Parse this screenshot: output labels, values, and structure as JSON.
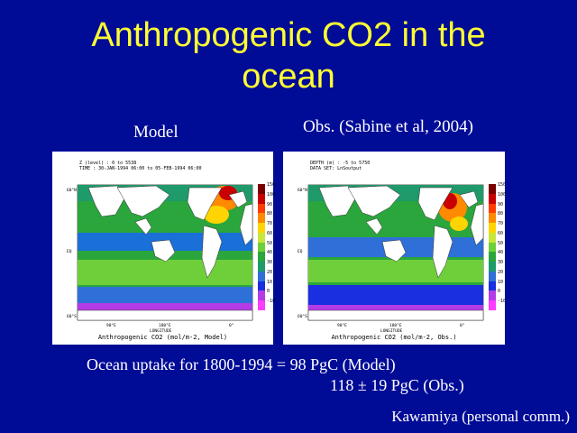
{
  "slide": {
    "title_line1": "Anthropogenic CO2 in the",
    "title_line2": "ocean",
    "model_label": "Model",
    "obs_label": "Obs. (Sabine et al, 2004)",
    "uptake_line1": "Ocean uptake for 1800-1994 =  98 PgC (Model)",
    "uptake_line2": "118 ± 19 PgC (Obs.)",
    "credit": "Kawamiya (personal comm.)"
  },
  "maps": {
    "model": {
      "header1": "Z (level) : 0 to 5538",
      "header2": "TIME : 30-JAN-1994 06:00 to 05-FEB-1994 06:00",
      "footer": "Anthropogenic CO2 (mol/m-2, Model)"
    },
    "obs": {
      "header1": "DEPTH (m) : -5 to 5750",
      "header2": "DATA SET: LnSoutput",
      "footer": "Anthropogenic CO2 (mol/m-2, Obs.)"
    },
    "colorbar_ticks": [
      "150",
      "100",
      "90",
      "80",
      "70",
      "60",
      "50",
      "40",
      "30",
      "20",
      "10",
      "0",
      "-10"
    ],
    "colorbar_colors": [
      "#7a0000",
      "#c80000",
      "#ff3c00",
      "#ff8a00",
      "#ffd400",
      "#c8e63c",
      "#6fcf3a",
      "#2aa63c",
      "#1f9a6a",
      "#2f6fd8",
      "#1a2fe0",
      "#b43ce6",
      "#ff3cff"
    ]
  }
}
